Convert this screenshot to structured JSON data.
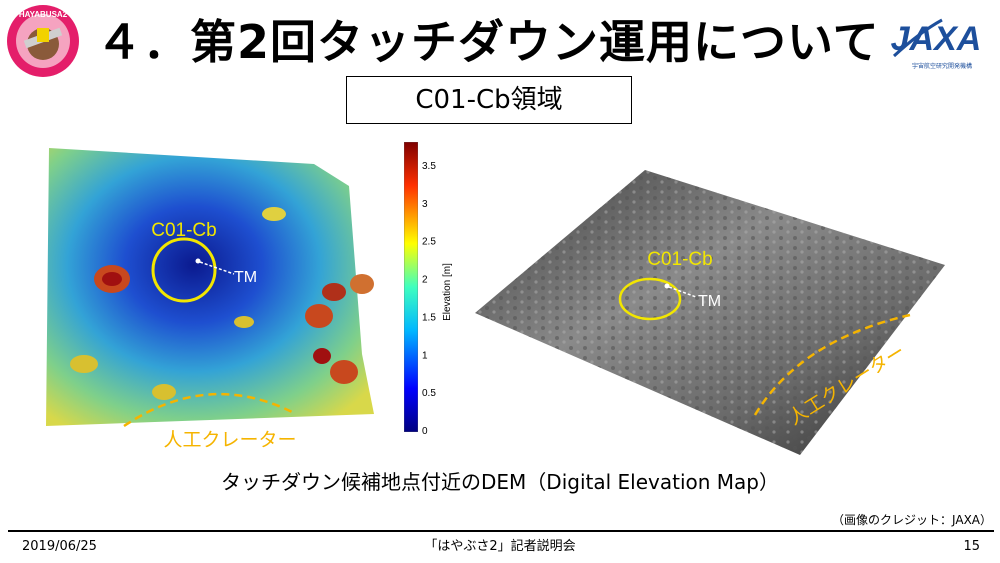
{
  "header": {
    "title": "４．第2回タッチダウン運用について",
    "subtitle": "C01-Cb領域",
    "logo_text": "JAXA",
    "logo_subtext": "宇宙航空研究開発機構",
    "patch_text": "HAYABUSA2"
  },
  "dem_panel": {
    "region_label": "C01-Cb",
    "target_marker_label": "TM",
    "crater_label": "人工クレーター",
    "colorbar_label": "Elevation [m]",
    "colorbar_ticks": [
      "3.5",
      "3",
      "2.5",
      "2",
      "1.5",
      "1",
      "0.5",
      "0"
    ]
  },
  "relief_panel": {
    "region_label": "C01-Cb",
    "target_marker_label": "TM",
    "crater_label": "人工クレーター"
  },
  "caption": "タッチダウン候補地点付近のDEM（Digital Elevation Map）",
  "credit": "（画像のクレジット：JAXA）",
  "footer": {
    "date": "2019/06/25",
    "event": "「はやぶさ2」記者説明会",
    "page_number": "15"
  },
  "colors": {
    "highlight_yellow": "#f2e600",
    "crater_orange": "#f5b400",
    "jaxa_blue": "#1d4f9c"
  }
}
